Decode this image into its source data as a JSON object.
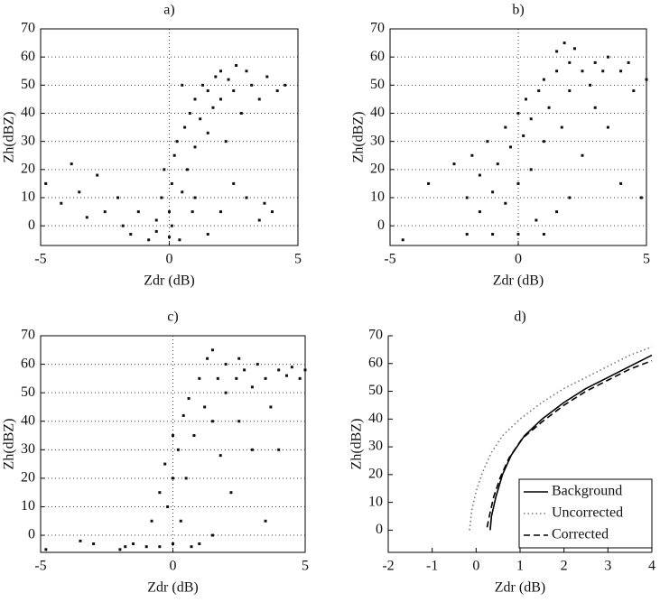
{
  "chart_data": [
    {
      "type": "scatter",
      "title": "a)",
      "xlabel": "Zdr (dB)",
      "ylabel": "Zh(dBZ)",
      "color": "#111111",
      "grid": true,
      "xlim": [
        -5,
        5
      ],
      "ylim": [
        -7,
        70
      ],
      "xticks": [
        -5,
        0,
        5
      ],
      "yticks": [
        0,
        10,
        20,
        30,
        40,
        50,
        60,
        70
      ],
      "x": [
        -4.8,
        -4.2,
        -3.8,
        -3.5,
        -3.2,
        -2.8,
        -2.5,
        -2,
        -1.8,
        -1.5,
        -1.2,
        -0.8,
        -0.5,
        -0.3,
        -0.2,
        0,
        0,
        0.1,
        0.2,
        0.3,
        0.1,
        0.4,
        0.5,
        0.6,
        0.7,
        0.8,
        0.9,
        1,
        1,
        1.2,
        1.3,
        1.5,
        1.5,
        1.7,
        1.8,
        2,
        2,
        2.2,
        2.3,
        2.5,
        2.6,
        2.8,
        3,
        3,
        3.2,
        3.5,
        3.7,
        3.8,
        4,
        4.2,
        4.5,
        1.5,
        2.5,
        0.5,
        -0.5,
        1,
        2,
        3.5
      ],
      "values": [
        15,
        8,
        22,
        12,
        3,
        18,
        5,
        10,
        0,
        -3,
        5,
        -5,
        2,
        10,
        20,
        -4,
        5,
        15,
        25,
        30,
        0,
        -5,
        12,
        35,
        20,
        40,
        5,
        45,
        28,
        38,
        50,
        48,
        33,
        42,
        53,
        55,
        45,
        30,
        52,
        48,
        57,
        40,
        55,
        10,
        50,
        45,
        8,
        53,
        5,
        48,
        50,
        -3,
        15,
        50,
        -2,
        10,
        5,
        2
      ]
    },
    {
      "type": "scatter",
      "title": "b)",
      "xlabel": "Zdr (dB)",
      "ylabel": "Zh(dBZ)",
      "color": "#111111",
      "grid": true,
      "xlim": [
        -5,
        5
      ],
      "ylim": [
        -7,
        70
      ],
      "xticks": [
        -5,
        0,
        5
      ],
      "yticks": [
        0,
        10,
        20,
        30,
        40,
        50,
        60,
        70
      ],
      "x": [
        -4.5,
        -3.5,
        -2.5,
        -2,
        -1.8,
        -1.5,
        -1.5,
        -1.2,
        -1,
        -1,
        -0.8,
        -0.5,
        -0.5,
        -0.3,
        0,
        0,
        0,
        0.2,
        0.3,
        0.5,
        0.5,
        0.8,
        1,
        1,
        1.2,
        1.5,
        1.5,
        1.7,
        1.8,
        2,
        2,
        2.2,
        2.5,
        2.5,
        2.8,
        3,
        3,
        3.3,
        3.5,
        3.5,
        4,
        4,
        4.3,
        4.5,
        4.8,
        5,
        2,
        1,
        -2,
        1.5,
        0.7
      ],
      "values": [
        -5,
        15,
        22,
        10,
        25,
        5,
        18,
        30,
        12,
        -3,
        22,
        35,
        8,
        28,
        15,
        40,
        -3,
        32,
        45,
        20,
        38,
        48,
        30,
        52,
        42,
        55,
        62,
        35,
        65,
        58,
        48,
        63,
        55,
        25,
        50,
        58,
        42,
        55,
        60,
        35,
        55,
        15,
        58,
        48,
        10,
        52,
        10,
        -3,
        -3,
        5,
        2
      ]
    },
    {
      "type": "scatter",
      "title": "c)",
      "xlabel": "Zdr (dB)",
      "ylabel": "Zh(dBZ)",
      "color": "#111111",
      "grid": true,
      "xlim": [
        -5,
        5
      ],
      "ylim": [
        -6,
        70
      ],
      "xticks": [
        -5,
        0,
        5
      ],
      "yticks": [
        0,
        10,
        20,
        30,
        40,
        50,
        60,
        70
      ],
      "x": [
        -4.8,
        -3.5,
        -3,
        -2,
        -1.5,
        -1,
        -0.8,
        -0.5,
        -0.5,
        -0.3,
        -0.2,
        0,
        0,
        0,
        0.2,
        0.3,
        0.4,
        0.5,
        0.6,
        0.8,
        1,
        1,
        1.2,
        1.3,
        1.5,
        1.5,
        1.7,
        1.8,
        2,
        2,
        2.2,
        2.4,
        2.5,
        2.7,
        3,
        3,
        3.2,
        3.5,
        3.5,
        3.7,
        4,
        4,
        4.3,
        4.5,
        4.8,
        5,
        2.5,
        1.5,
        0.7,
        -1.8
      ],
      "values": [
        -5,
        -2,
        -3,
        -5,
        -3,
        -4,
        5,
        15,
        -4,
        25,
        10,
        20,
        35,
        -3,
        30,
        5,
        42,
        20,
        48,
        35,
        55,
        -3,
        45,
        62,
        40,
        65,
        55,
        28,
        60,
        50,
        15,
        55,
        40,
        58,
        52,
        30,
        60,
        55,
        5,
        45,
        58,
        30,
        56,
        59,
        55,
        58,
        62,
        0,
        -4,
        -4
      ]
    },
    {
      "type": "line",
      "title": "d)",
      "xlabel": "Zdr (dB)",
      "ylabel": "Zh(dBZ)",
      "grid": false,
      "legend": "lower right",
      "xlim": [
        -2,
        4
      ],
      "ylim": [
        -8,
        70
      ],
      "xticks": [
        -2,
        -1,
        0,
        1,
        2,
        3,
        4
      ],
      "yticks": [
        0,
        10,
        20,
        30,
        40,
        50,
        60,
        70
      ],
      "series": [
        {
          "name": "Background",
          "color": "#000000",
          "style": "solid",
          "x": [
            0.32,
            0.35,
            0.45,
            0.6,
            0.8,
            1.1,
            1.5,
            2.0,
            2.5,
            3.0,
            3.5,
            4.0
          ],
          "values": [
            0,
            5,
            12,
            20,
            27,
            34,
            40,
            46,
            51,
            55,
            59,
            63
          ]
        },
        {
          "name": "Uncorrected",
          "color": "#777777",
          "style": "dotted",
          "x": [
            -0.15,
            -0.1,
            0.0,
            0.15,
            0.35,
            0.6,
            1.0,
            1.5,
            2.0,
            2.5,
            3.0,
            3.5,
            4.0
          ],
          "values": [
            0,
            7,
            14,
            21,
            28,
            34,
            40,
            46,
            51,
            55,
            59,
            63,
            66
          ]
        },
        {
          "name": "Corrected",
          "color": "#000000",
          "style": "dashed",
          "x": [
            0.25,
            0.3,
            0.4,
            0.55,
            0.75,
            1.05,
            1.5,
            2.0,
            2.5,
            3.0,
            3.5,
            4.0
          ],
          "values": [
            1,
            5,
            12,
            19,
            26,
            33,
            39,
            45,
            50,
            54,
            58,
            61
          ]
        }
      ]
    }
  ]
}
